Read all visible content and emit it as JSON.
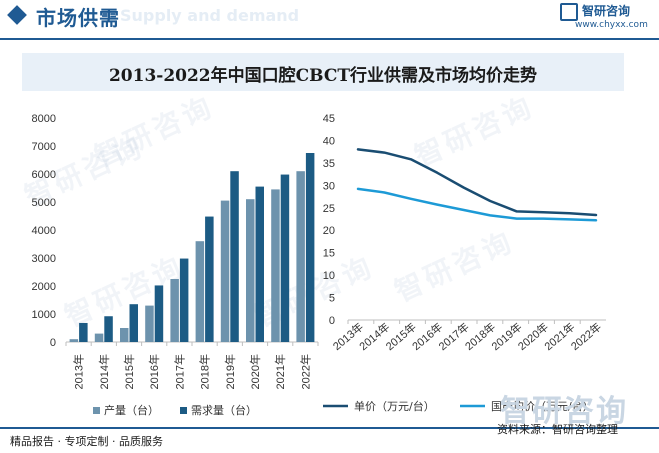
{
  "header": {
    "title": "市场供需",
    "watermark": "Supply and demand",
    "logo_name": "智研咨询",
    "logo_url": "www.chyxx.com"
  },
  "watermark_text": "智研咨询",
  "chart_title": "2013-2022年中国口腔CBCT行业供需及市场均价走势",
  "footer": {
    "left": "精品报告 · 专项定制 · 品质服务",
    "right": "资料来源：智研咨询整理",
    "logo": "智研咨询"
  },
  "colors": {
    "brand": "#1f5a93",
    "production": "#6d93ad",
    "demand": "#1c5b84",
    "unit_price": "#1a4d72",
    "domestic_price": "#1d9ad6"
  },
  "chart_data": [
    {
      "type": "bar",
      "categories": [
        "2013年",
        "2014年",
        "2015年",
        "2016年",
        "2017年",
        "2018年",
        "2019年",
        "2020年",
        "2021年",
        "2022年"
      ],
      "series": [
        {
          "name": "产量（台）",
          "values": [
            100,
            300,
            500,
            1300,
            2250,
            3600,
            5050,
            5100,
            5450,
            6100
          ]
        },
        {
          "name": "需求量（台）",
          "values": [
            680,
            920,
            1350,
            2020,
            2980,
            4480,
            6100,
            5550,
            5980,
            6750
          ]
        }
      ],
      "ylim": [
        0,
        8000
      ],
      "yticks": [
        0,
        1000,
        2000,
        3000,
        4000,
        5000,
        6000,
        7000,
        8000
      ],
      "legend": "bottom"
    },
    {
      "type": "line",
      "categories": [
        "2013年",
        "2014年",
        "2015年",
        "2016年",
        "2017年",
        "2018年",
        "2019年",
        "2020年",
        "2021年",
        "2022年"
      ],
      "series": [
        {
          "name": "单价（万元/台）",
          "values": [
            38,
            37.3,
            35.8,
            32.8,
            29.5,
            26.5,
            24.2,
            24,
            23.8,
            23.4
          ]
        },
        {
          "name": "国产均价（万元/台）",
          "values": [
            29.2,
            28.4,
            27,
            25.7,
            24.5,
            23.3,
            22.6,
            22.6,
            22.4,
            22.2
          ]
        }
      ],
      "ylim": [
        0,
        45
      ],
      "yticks": [
        0,
        5,
        10,
        15,
        20,
        25,
        30,
        35,
        40,
        45
      ],
      "legend": "bottom",
      "grid": false
    }
  ]
}
